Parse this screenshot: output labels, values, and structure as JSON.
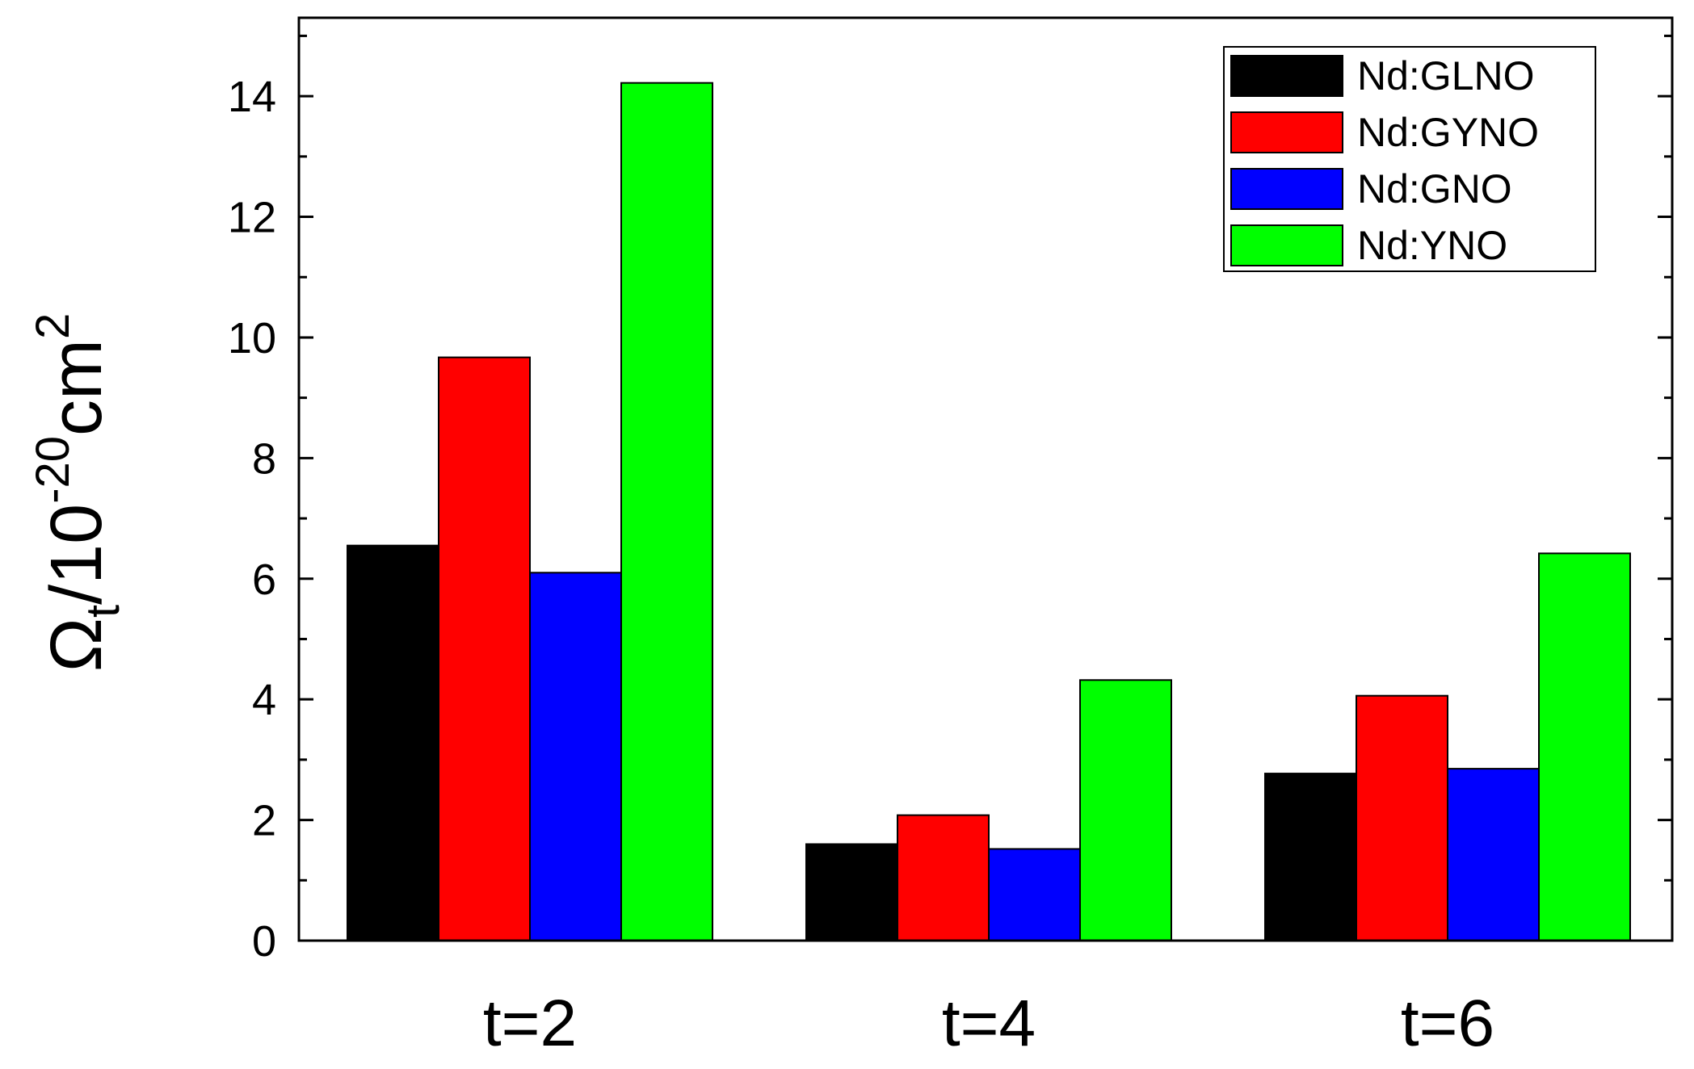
{
  "chart_data": {
    "type": "bar",
    "categories": [
      "t=2",
      "t=4",
      "t=6"
    ],
    "series": [
      {
        "name": "Nd:GLNO",
        "color": "#000000",
        "values": [
          6.55,
          1.6,
          2.77
        ]
      },
      {
        "name": "Nd:GYNO",
        "color": "#ff0000",
        "values": [
          9.67,
          2.08,
          4.06
        ]
      },
      {
        "name": "Nd:GNO",
        "color": "#0000ff",
        "values": [
          6.1,
          1.52,
          2.85
        ]
      },
      {
        "name": "Nd:YNO",
        "color": "#00ff00",
        "values": [
          14.22,
          4.32,
          6.42
        ]
      }
    ],
    "ylim": [
      0,
      15.3
    ],
    "yticks": [
      "0",
      "2",
      "4",
      "6",
      "8",
      "10",
      "12",
      "14"
    ],
    "ylabel": {
      "symbol": "Ω",
      "subscript": "t",
      "unit": "/10",
      "exponent": "-20",
      "unit2": "cm",
      "exponent2": "2"
    },
    "xlabel": "",
    "legend_position": "top-right",
    "grid": false
  }
}
